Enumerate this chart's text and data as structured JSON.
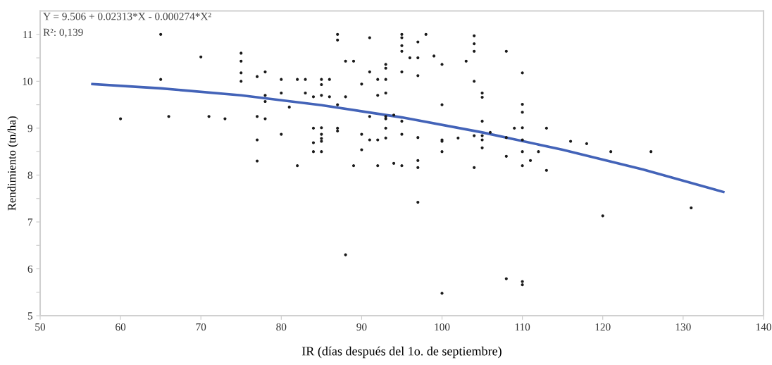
{
  "chart_data": {
    "type": "scatter",
    "xlabel": "IR (días después del 1o. de septiembre)",
    "ylabel": "Rendimiento (tn/ha)",
    "annotations": [
      "Y = 9.506 + 0.02313*X - 0.000274*X²",
      "R²: 0,139"
    ],
    "xlim": [
      50,
      140
    ],
    "xticks": [
      50,
      60,
      70,
      80,
      90,
      100,
      110,
      120,
      130,
      140
    ],
    "ylim": [
      5,
      11.5
    ],
    "yticks": [
      5,
      {
        "value": 5.5,
        "label": null
      },
      6,
      {
        "value": 6.5,
        "label": null
      },
      7,
      {
        "value": 7.5,
        "label": null
      },
      8,
      {
        "value": 8.5,
        "label": null
      },
      9,
      {
        "value": 9.5,
        "label": null
      },
      10,
      {
        "value": 10.5,
        "label": null
      },
      11
    ],
    "grid": false,
    "legend": false,
    "series": [
      {
        "color": "#1a1a1a",
        "marker": "circle",
        "x": [
          60,
          65,
          65,
          66,
          70,
          71,
          73,
          75,
          75,
          75,
          75,
          77,
          77,
          77,
          77,
          78,
          78,
          78,
          78,
          80,
          80,
          81,
          80,
          82,
          82,
          83,
          83,
          84,
          84,
          84,
          84,
          85,
          85,
          85,
          85,
          85,
          85,
          85,
          85,
          86,
          86,
          87,
          87,
          87,
          87,
          87,
          88,
          88,
          89,
          89,
          90,
          90,
          90,
          91,
          91,
          91,
          91,
          92,
          92,
          92,
          92,
          93,
          93,
          93,
          93,
          93,
          93,
          93,
          93,
          94,
          94,
          95,
          95,
          95,
          95,
          95,
          95,
          95,
          95,
          96,
          97,
          97,
          97,
          97,
          97,
          97,
          98,
          99,
          100,
          100,
          100,
          100,
          100,
          102,
          103,
          104,
          104,
          104,
          104,
          104,
          104,
          105,
          105,
          105,
          105,
          105,
          105,
          106,
          108,
          108,
          108,
          109,
          110,
          110,
          110,
          110,
          110,
          110,
          110,
          111,
          112,
          113,
          113,
          116,
          118,
          121,
          126,
          88,
          97,
          120,
          131,
          100,
          108,
          110,
          110
        ],
        "values": [
          9.2,
          11.0,
          10.04,
          9.25,
          10.52,
          9.25,
          9.2,
          10.6,
          10.43,
          10.18,
          10.0,
          10.1,
          9.25,
          8.75,
          8.3,
          10.2,
          9.7,
          9.57,
          9.2,
          10.04,
          9.75,
          9.45,
          8.87,
          10.04,
          8.2,
          10.04,
          9.75,
          9.67,
          9.0,
          8.69,
          8.5,
          10.04,
          9.93,
          9.7,
          9.01,
          8.87,
          8.78,
          8.72,
          8.5,
          10.04,
          9.67,
          11.0,
          10.88,
          9.5,
          9.0,
          8.94,
          10.43,
          9.67,
          10.43,
          8.2,
          9.94,
          8.87,
          8.54,
          10.93,
          10.2,
          9.25,
          8.75,
          10.04,
          9.7,
          8.75,
          8.2,
          10.36,
          10.28,
          10.04,
          9.75,
          9.25,
          9.2,
          9.0,
          8.79,
          9.28,
          8.25,
          11.0,
          10.93,
          10.76,
          10.64,
          10.2,
          9.15,
          8.87,
          8.2,
          10.5,
          10.84,
          10.5,
          10.12,
          8.8,
          8.31,
          8.16,
          11.0,
          10.54,
          10.36,
          9.5,
          8.75,
          8.72,
          8.5,
          8.79,
          10.43,
          10.97,
          10.8,
          10.64,
          10.0,
          8.84,
          8.16,
          9.75,
          9.66,
          9.15,
          8.84,
          8.75,
          8.58,
          8.91,
          10.64,
          8.8,
          8.4,
          9.0,
          10.18,
          9.51,
          9.34,
          9.01,
          8.75,
          8.5,
          8.2,
          8.31,
          8.5,
          9.0,
          8.1,
          8.72,
          8.67,
          8.5,
          8.5,
          6.3,
          7.42,
          7.13,
          7.3,
          5.48,
          5.79,
          5.73,
          5.66
        ]
      },
      {
        "type": "line",
        "color": "#4363b8",
        "line_style": "solid",
        "marker": "none",
        "x": [
          56.5,
          65,
          75,
          85,
          95,
          105,
          115,
          125,
          135
        ],
        "values": [
          9.94,
          9.85,
          9.7,
          9.49,
          9.23,
          8.91,
          8.54,
          8.12,
          7.64
        ]
      }
    ]
  }
}
